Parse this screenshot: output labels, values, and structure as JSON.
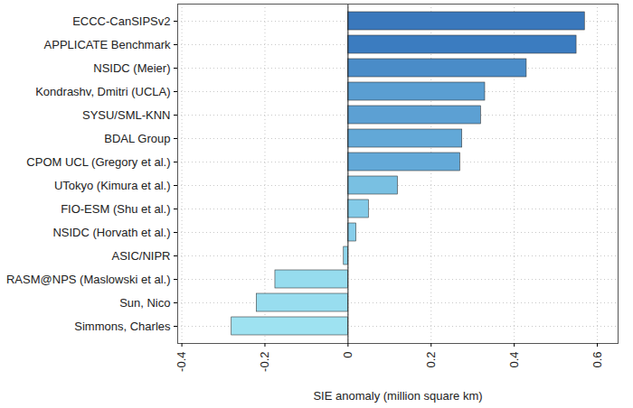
{
  "chart_data": {
    "type": "bar",
    "orientation": "horizontal",
    "xlabel": "SIE anomaly (million square km)",
    "categories": [
      "ECCC-CanSIPSv2",
      "APPLICATE Benchmark",
      "NSIDC (Meier)",
      "Kondrashv, Dmitri (UCLA)",
      "SYSU/SML-KNN",
      "BDAL Group",
      "CPOM UCL (Gregory et al.)",
      "UTokyo (Kimura et al.)",
      "FIO-ESM (Shu et al.)",
      "NSIDC (Horvath et al.)",
      "ASIC/NIPR",
      "RASM@NPS (Maslowski et al.)",
      "Sun, Nico",
      "Simmons, Charles"
    ],
    "values": [
      0.57,
      0.55,
      0.43,
      0.33,
      0.32,
      0.275,
      0.27,
      0.12,
      0.05,
      0.02,
      -0.01,
      -0.175,
      -0.22,
      -0.28
    ],
    "colors": [
      "#3a78bc",
      "#3b7cc0",
      "#4a8cc8",
      "#5a9ed2",
      "#5ca0d3",
      "#62a8d7",
      "#63a9d8",
      "#79c0e2",
      "#84cbe8",
      "#87cdea",
      "#8ed6ec",
      "#96dcee",
      "#98ddef",
      "#9ee2f1"
    ],
    "xlim": [
      -0.41,
      0.65
    ],
    "xticks": [
      -0.4,
      -0.2,
      0,
      0.2,
      0.4,
      0.6
    ],
    "grid": true
  }
}
